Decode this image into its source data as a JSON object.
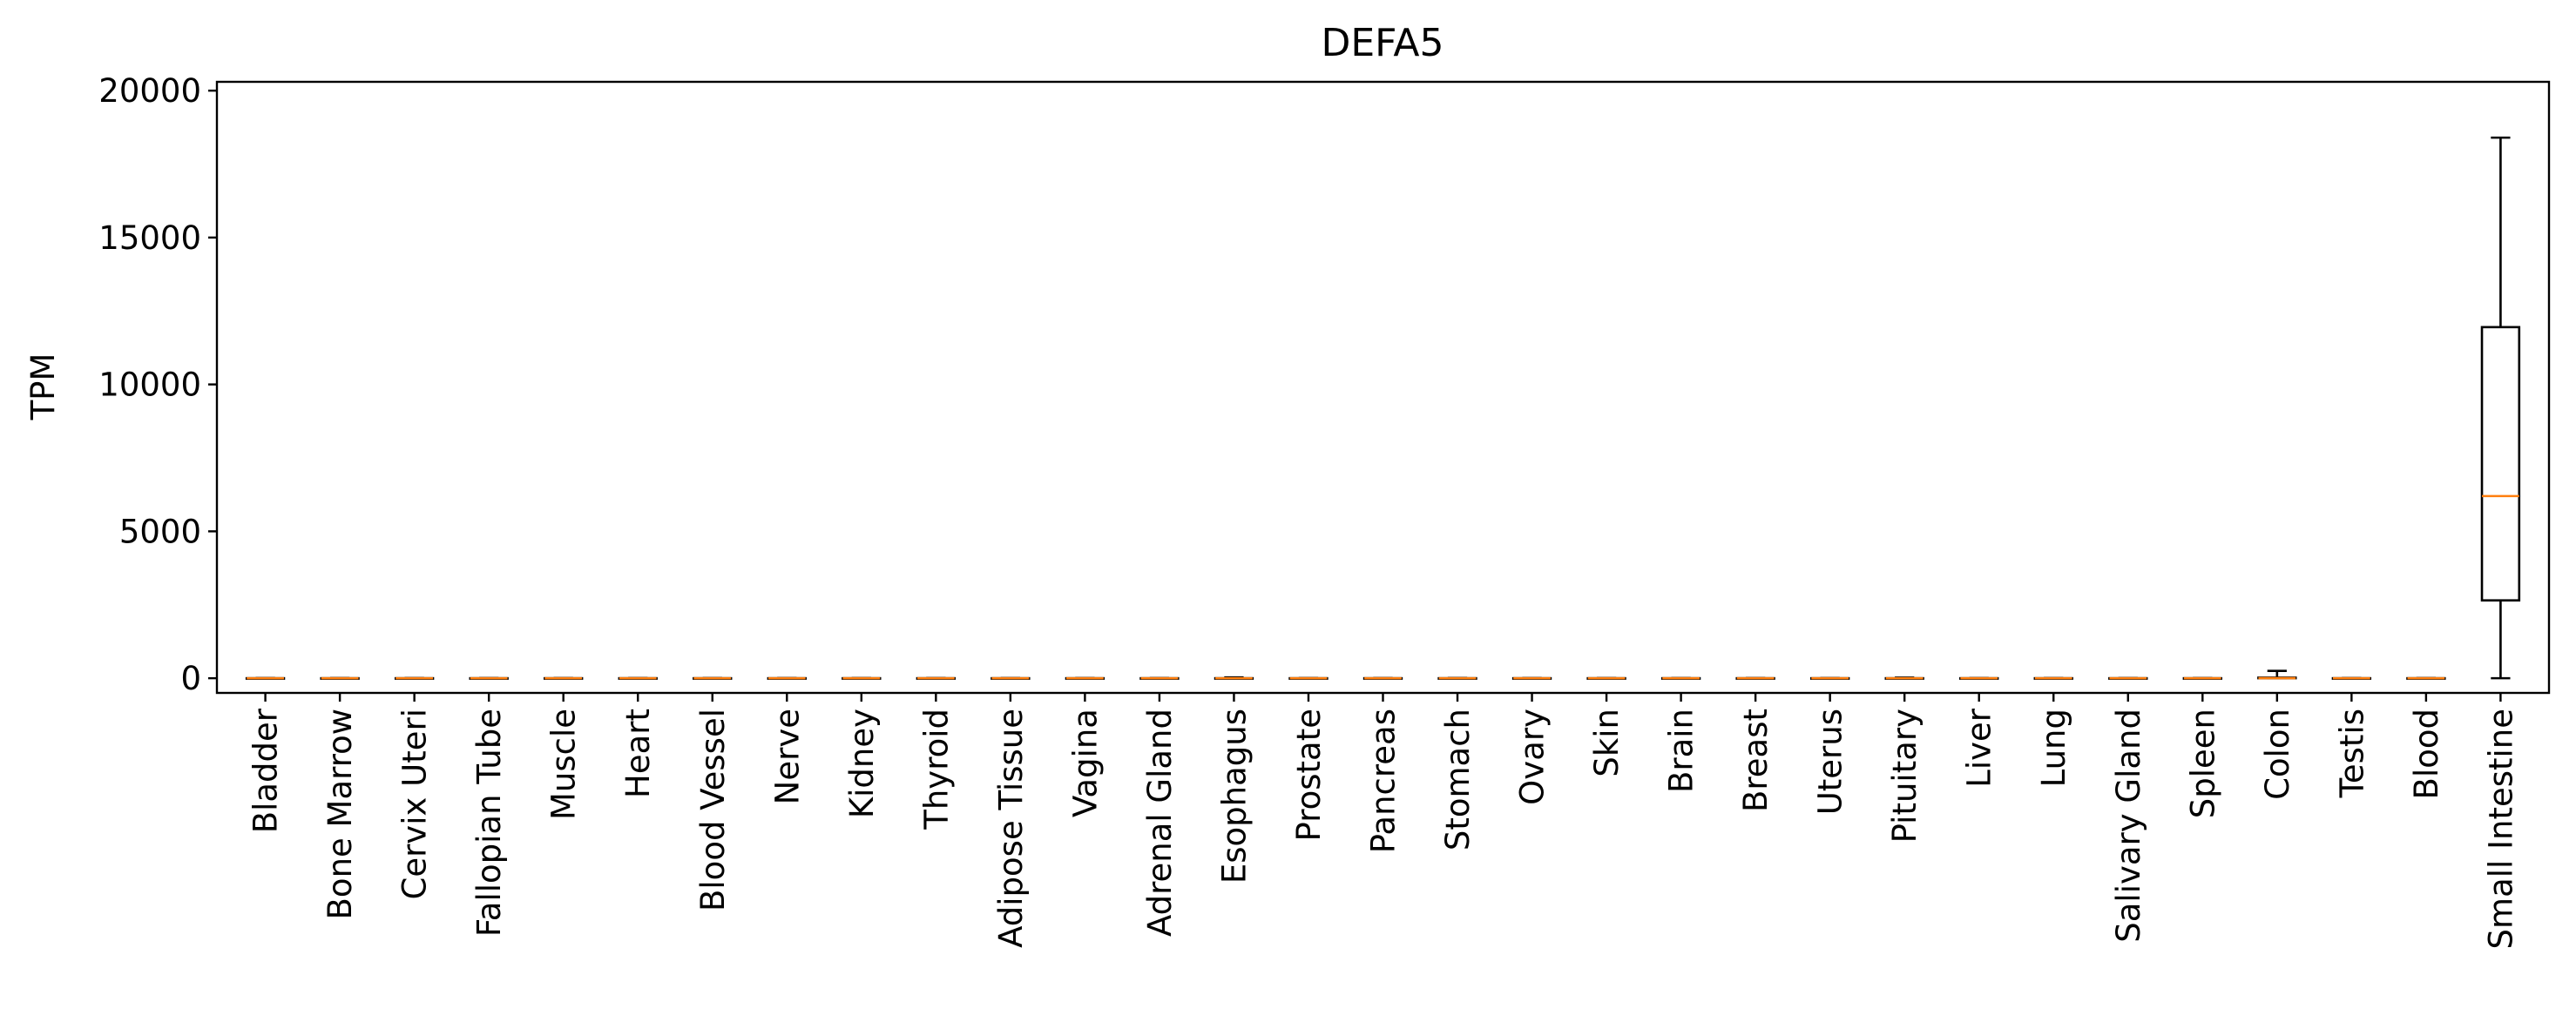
{
  "chart_data": {
    "type": "box",
    "title": "DEFA5",
    "xlabel": "",
    "ylabel": "TPM",
    "ylim": [
      -500,
      20300
    ],
    "yticks": [
      0,
      5000,
      10000,
      15000,
      20000
    ],
    "ytick_labels": [
      "0",
      "5000",
      "10000",
      "15000",
      "20000"
    ],
    "grid": false,
    "median_color": "#ff7f0e",
    "box_color": "#000000",
    "categories": [
      "Bladder",
      "Bone Marrow",
      "Cervix Uteri",
      "Fallopian Tube",
      "Muscle",
      "Heart",
      "Blood Vessel",
      "Nerve",
      "Kidney",
      "Thyroid",
      "Adipose Tissue",
      "Vagina",
      "Adrenal Gland",
      "Esophagus",
      "Prostate",
      "Pancreas",
      "Stomach",
      "Ovary",
      "Skin",
      "Brain",
      "Breast",
      "Uterus",
      "Pituitary",
      "Liver",
      "Lung",
      "Salivary Gland",
      "Spleen",
      "Colon",
      "Testis",
      "Blood",
      "Small Intestine"
    ],
    "series": [
      {
        "boxes": [
          {
            "category": "Bladder",
            "whisker_low": 0,
            "q1": 0,
            "median": 0,
            "q3": 0,
            "whisker_high": 1
          },
          {
            "category": "Bone Marrow",
            "whisker_low": 0,
            "q1": 0,
            "median": 0,
            "q3": 0,
            "whisker_high": 1
          },
          {
            "category": "Cervix Uteri",
            "whisker_low": 0,
            "q1": 0,
            "median": 0,
            "q3": 0,
            "whisker_high": 1
          },
          {
            "category": "Fallopian Tube",
            "whisker_low": 0,
            "q1": 0,
            "median": 0,
            "q3": 0,
            "whisker_high": 1
          },
          {
            "category": "Muscle",
            "whisker_low": 0,
            "q1": 0,
            "median": 0,
            "q3": 0,
            "whisker_high": 1
          },
          {
            "category": "Heart",
            "whisker_low": 0,
            "q1": 0,
            "median": 0,
            "q3": 0,
            "whisker_high": 1
          },
          {
            "category": "Blood Vessel",
            "whisker_low": 0,
            "q1": 0,
            "median": 0,
            "q3": 0,
            "whisker_high": 1
          },
          {
            "category": "Nerve",
            "whisker_low": 0,
            "q1": 0,
            "median": 0,
            "q3": 0,
            "whisker_high": 1
          },
          {
            "category": "Kidney",
            "whisker_low": 0,
            "q1": 0,
            "median": 0,
            "q3": 0,
            "whisker_high": 1
          },
          {
            "category": "Thyroid",
            "whisker_low": 0,
            "q1": 0,
            "median": 0,
            "q3": 0,
            "whisker_high": 1
          },
          {
            "category": "Adipose Tissue",
            "whisker_low": 0,
            "q1": 0,
            "median": 0,
            "q3": 0,
            "whisker_high": 1
          },
          {
            "category": "Vagina",
            "whisker_low": 0,
            "q1": 0,
            "median": 0,
            "q3": 0,
            "whisker_high": 1
          },
          {
            "category": "Adrenal Gland",
            "whisker_low": 0,
            "q1": 0,
            "median": 0,
            "q3": 0,
            "whisker_high": 1
          },
          {
            "category": "Esophagus",
            "whisker_low": 0,
            "q1": 0,
            "median": 0,
            "q3": 0,
            "whisker_high": 30
          },
          {
            "category": "Prostate",
            "whisker_low": 0,
            "q1": 0,
            "median": 0,
            "q3": 0,
            "whisker_high": 1
          },
          {
            "category": "Pancreas",
            "whisker_low": 0,
            "q1": 0,
            "median": 0,
            "q3": 0,
            "whisker_high": 1
          },
          {
            "category": "Stomach",
            "whisker_low": 0,
            "q1": 0,
            "median": 0,
            "q3": 0,
            "whisker_high": 5
          },
          {
            "category": "Ovary",
            "whisker_low": 0,
            "q1": 0,
            "median": 0,
            "q3": 0,
            "whisker_high": 1
          },
          {
            "category": "Skin",
            "whisker_low": 0,
            "q1": 0,
            "median": 0,
            "q3": 0,
            "whisker_high": 1
          },
          {
            "category": "Brain",
            "whisker_low": 0,
            "q1": 0,
            "median": 0,
            "q3": 0,
            "whisker_high": 1
          },
          {
            "category": "Breast",
            "whisker_low": 0,
            "q1": 0,
            "median": 0,
            "q3": 0,
            "whisker_high": 1
          },
          {
            "category": "Uterus",
            "whisker_low": 0,
            "q1": 0,
            "median": 0,
            "q3": 0,
            "whisker_high": 1
          },
          {
            "category": "Pituitary",
            "whisker_low": 0,
            "q1": 0,
            "median": 0,
            "q3": 0,
            "whisker_high": 20
          },
          {
            "category": "Liver",
            "whisker_low": 0,
            "q1": 0,
            "median": 0,
            "q3": 0,
            "whisker_high": 1
          },
          {
            "category": "Lung",
            "whisker_low": 0,
            "q1": 0,
            "median": 0,
            "q3": 0,
            "whisker_high": 1
          },
          {
            "category": "Salivary Gland",
            "whisker_low": 0,
            "q1": 0,
            "median": 0,
            "q3": 0,
            "whisker_high": 1
          },
          {
            "category": "Spleen",
            "whisker_low": 0,
            "q1": 0,
            "median": 0,
            "q3": 0,
            "whisker_high": 1
          },
          {
            "category": "Colon",
            "whisker_low": 0,
            "q1": 0,
            "median": 2,
            "q3": 20,
            "whisker_high": 250
          },
          {
            "category": "Testis",
            "whisker_low": 0,
            "q1": 0,
            "median": 0,
            "q3": 0,
            "whisker_high": 1
          },
          {
            "category": "Blood",
            "whisker_low": 0,
            "q1": 0,
            "median": 0,
            "q3": 0,
            "whisker_high": 1
          },
          {
            "category": "Small Intestine",
            "whisker_low": 0,
            "q1": 2650,
            "median": 6200,
            "q3": 11950,
            "whisker_high": 18400
          }
        ]
      }
    ]
  }
}
